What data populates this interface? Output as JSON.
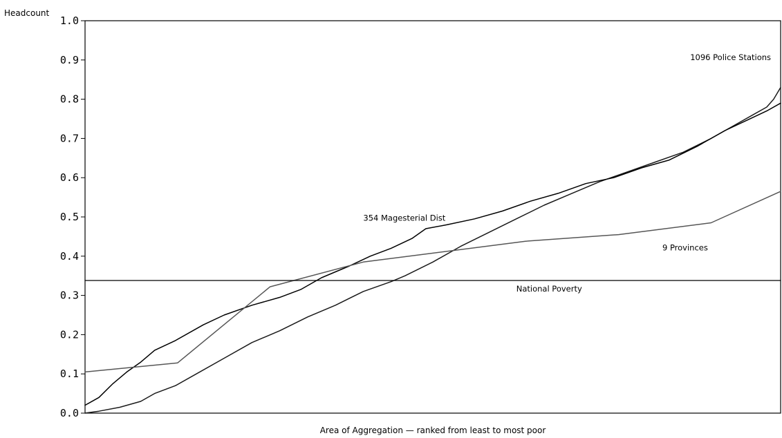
{
  "chart_data": {
    "type": "line",
    "title": "",
    "ylabel": "Headcount",
    "xlabel": "Area of Aggregation — ranked from least to most poor",
    "xlim": [
      0,
      1
    ],
    "ylim": [
      0,
      1
    ],
    "yticks": [
      {
        "value": 0.0,
        "label": "0.0"
      },
      {
        "value": 0.1,
        "label": "0.1"
      },
      {
        "value": 0.2,
        "label": "0.2"
      },
      {
        "value": 0.3,
        "label": "0.3"
      },
      {
        "value": 0.4,
        "label": "0.4"
      },
      {
        "value": 0.5,
        "label": "0.5"
      },
      {
        "value": 0.6,
        "label": "0.6"
      },
      {
        "value": 0.7,
        "label": "0.7"
      },
      {
        "value": 0.8,
        "label": "0.8"
      },
      {
        "value": 0.9,
        "label": "0.9"
      },
      {
        "value": 1.0,
        "label": "1.0"
      }
    ],
    "grid": false,
    "series": [
      {
        "name": "1096 Police Stations",
        "color": "#1a1a1a",
        "points": [
          [
            0.0,
            0.0
          ],
          [
            0.02,
            0.005
          ],
          [
            0.05,
            0.015
          ],
          [
            0.08,
            0.03
          ],
          [
            0.1,
            0.05
          ],
          [
            0.13,
            0.07
          ],
          [
            0.16,
            0.1
          ],
          [
            0.2,
            0.14
          ],
          [
            0.24,
            0.18
          ],
          [
            0.28,
            0.21
          ],
          [
            0.32,
            0.245
          ],
          [
            0.36,
            0.275
          ],
          [
            0.4,
            0.31
          ],
          [
            0.44,
            0.335
          ],
          [
            0.46,
            0.35
          ],
          [
            0.5,
            0.385
          ],
          [
            0.54,
            0.425
          ],
          [
            0.58,
            0.46
          ],
          [
            0.62,
            0.495
          ],
          [
            0.66,
            0.53
          ],
          [
            0.7,
            0.56
          ],
          [
            0.74,
            0.59
          ],
          [
            0.78,
            0.615
          ],
          [
            0.82,
            0.64
          ],
          [
            0.86,
            0.665
          ],
          [
            0.9,
            0.7
          ],
          [
            0.93,
            0.73
          ],
          [
            0.96,
            0.76
          ],
          [
            0.98,
            0.78
          ],
          [
            0.99,
            0.8
          ],
          [
            1.0,
            0.83
          ]
        ]
      },
      {
        "name": "354 Magesterial Dist",
        "color": "#000000",
        "points": [
          [
            0.0,
            0.02
          ],
          [
            0.02,
            0.04
          ],
          [
            0.04,
            0.075
          ],
          [
            0.06,
            0.105
          ],
          [
            0.08,
            0.13
          ],
          [
            0.1,
            0.16
          ],
          [
            0.13,
            0.185
          ],
          [
            0.17,
            0.225
          ],
          [
            0.2,
            0.25
          ],
          [
            0.24,
            0.275
          ],
          [
            0.28,
            0.295
          ],
          [
            0.31,
            0.315
          ],
          [
            0.34,
            0.345
          ],
          [
            0.38,
            0.375
          ],
          [
            0.41,
            0.4
          ],
          [
            0.44,
            0.42
          ],
          [
            0.47,
            0.445
          ],
          [
            0.49,
            0.47
          ],
          [
            0.52,
            0.48
          ],
          [
            0.56,
            0.495
          ],
          [
            0.6,
            0.515
          ],
          [
            0.64,
            0.54
          ],
          [
            0.68,
            0.56
          ],
          [
            0.72,
            0.585
          ],
          [
            0.76,
            0.6
          ],
          [
            0.8,
            0.625
          ],
          [
            0.84,
            0.645
          ],
          [
            0.88,
            0.68
          ],
          [
            0.92,
            0.72
          ],
          [
            0.95,
            0.745
          ],
          [
            0.98,
            0.77
          ],
          [
            1.0,
            0.79
          ]
        ]
      },
      {
        "name": "9 Provinces",
        "color": "#555555",
        "points": [
          [
            0.0,
            0.105
          ],
          [
            0.133,
            0.128
          ],
          [
            0.266,
            0.322
          ],
          [
            0.4,
            0.385
          ],
          [
            0.633,
            0.438
          ],
          [
            0.767,
            0.455
          ],
          [
            0.9,
            0.485
          ],
          [
            1.0,
            0.565
          ]
        ]
      },
      {
        "name": "National Poverty",
        "color": "#000000",
        "points": [
          [
            0.0,
            0.338
          ],
          [
            1.0,
            0.338
          ]
        ]
      }
    ],
    "annotations": [
      {
        "text": "1096 Police Stations",
        "x": 0.87,
        "y": 0.9,
        "anchor": "start"
      },
      {
        "text": "354 Magesterial Dist",
        "x": 0.4,
        "y": 0.49,
        "anchor": "start"
      },
      {
        "text": "9 Provinces",
        "x": 0.83,
        "y": 0.415,
        "anchor": "start"
      },
      {
        "text": "National Poverty",
        "x": 0.62,
        "y": 0.31,
        "anchor": "start"
      }
    ]
  }
}
